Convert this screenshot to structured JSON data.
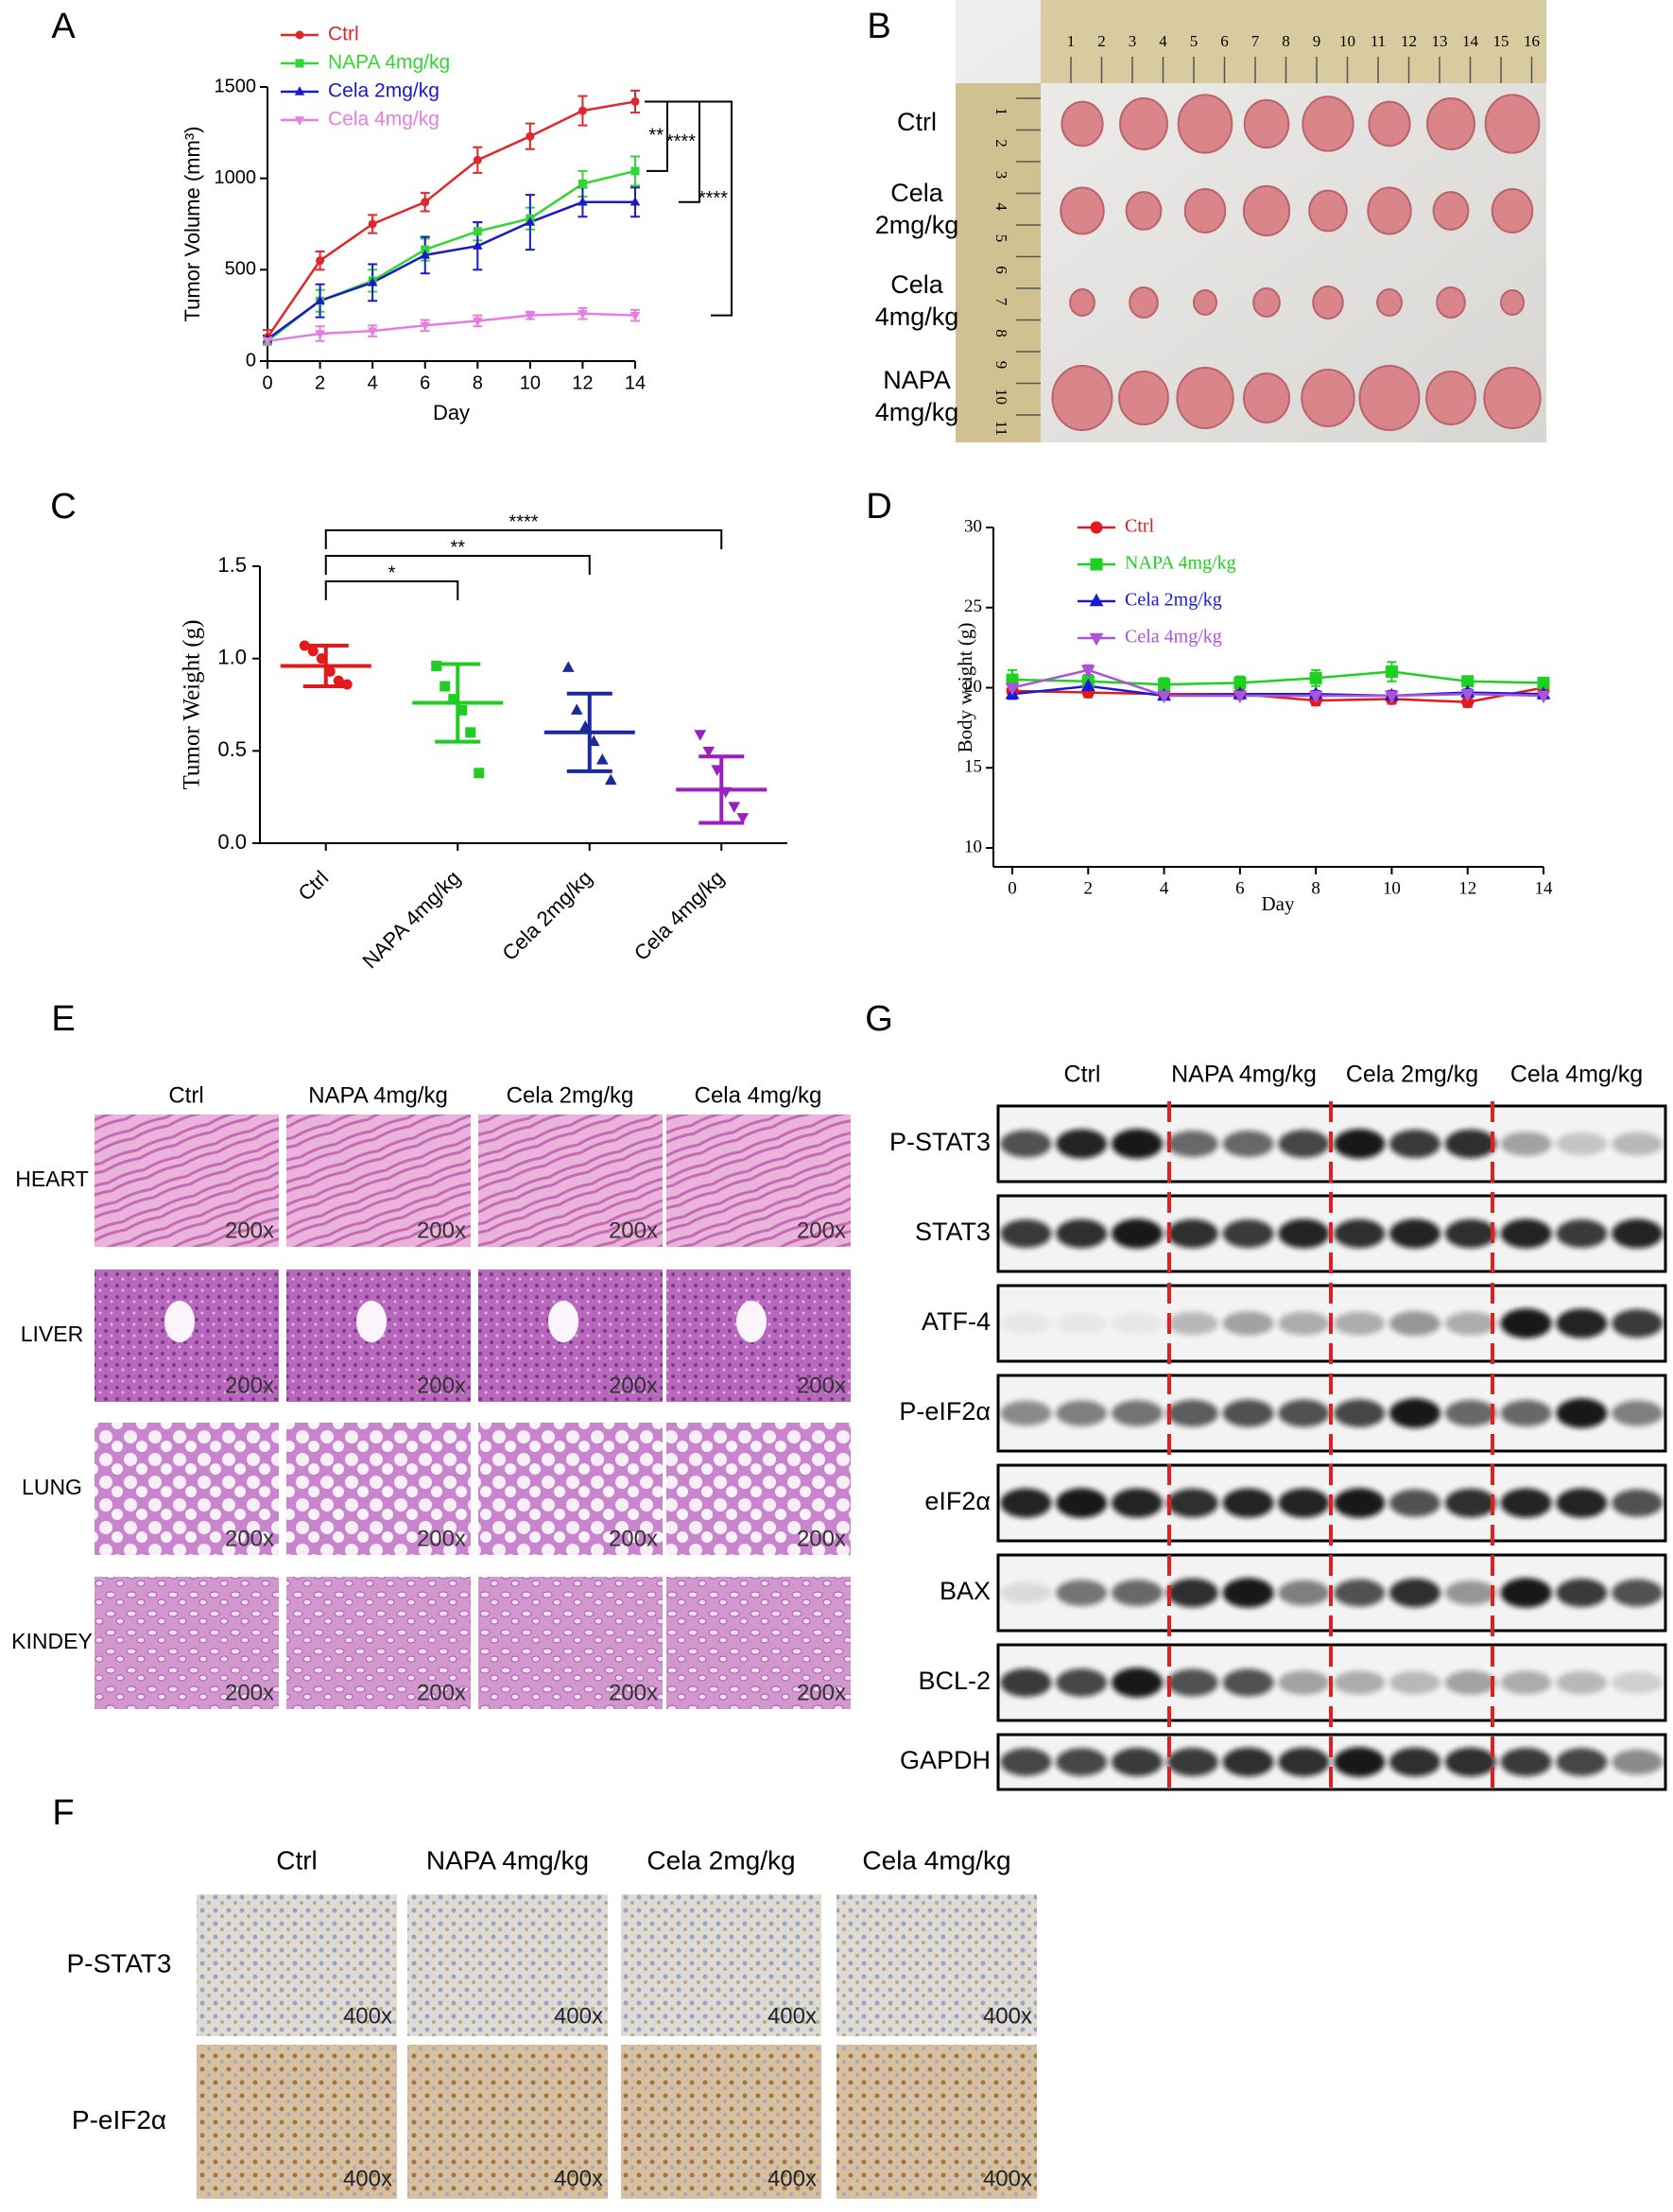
{
  "panel_labels": [
    "A",
    "B",
    "C",
    "D",
    "E",
    "F",
    "G"
  ],
  "chart_data": [
    {
      "type": "line",
      "xlabel": "Day",
      "ylabel": "Tumor Volume (mm³)",
      "x": [
        0,
        2,
        4,
        6,
        8,
        10,
        12,
        14
      ],
      "xlim": [
        0,
        14
      ],
      "xticks": [
        0,
        2,
        4,
        6,
        8,
        10,
        12,
        14
      ],
      "ylim": [
        0,
        1500
      ],
      "yticks": [
        0,
        500,
        1000,
        1500
      ],
      "legend": "upper left",
      "series": [
        {
          "name": "Ctrl",
          "color": "#e0282b",
          "marker": "circle",
          "values": [
            130,
            550,
            750,
            870,
            1100,
            1230,
            1370,
            1420
          ],
          "errors": [
            40,
            50,
            50,
            50,
            70,
            70,
            80,
            60
          ]
        },
        {
          "name": "NAPA 4mg/kg",
          "color": "#33d633",
          "marker": "square",
          "values": [
            110,
            330,
            440,
            610,
            710,
            780,
            970,
            1040
          ],
          "errors": [
            20,
            60,
            60,
            60,
            50,
            60,
            70,
            80
          ]
        },
        {
          "name": "Cela 2mg/kg",
          "color": "#1a1ac8",
          "marker": "triangle",
          "values": [
            120,
            330,
            430,
            580,
            630,
            760,
            870,
            870
          ],
          "errors": [
            20,
            90,
            100,
            100,
            130,
            150,
            80,
            80
          ]
        },
        {
          "name": "Cela 4mg/kg",
          "color": "#e57ee0",
          "marker": "tri-down",
          "values": [
            110,
            150,
            165,
            195,
            220,
            250,
            260,
            250
          ],
          "errors": [
            20,
            40,
            30,
            30,
            30,
            20,
            30,
            30
          ]
        }
      ],
      "significance": [
        "**",
        "****",
        "****"
      ]
    },
    {
      "type": "dotplot",
      "ylabel": "Tumor Weight (g)",
      "categories": [
        "Ctrl",
        "NAPA 4mg/kg",
        "Cela 2mg/kg",
        "Cela 4mg/kg"
      ],
      "colors": [
        "#e31a1c",
        "#22cc22",
        "#1a2a9c",
        "#9b1fc0"
      ],
      "markers": [
        "circle",
        "square",
        "triangle",
        "tri-down"
      ],
      "values": [
        0.96,
        0.76,
        0.6,
        0.29
      ],
      "errors": [
        0.11,
        0.21,
        0.21,
        0.18
      ],
      "points": [
        [
          1.07,
          1.04,
          1.0,
          0.93,
          0.88,
          0.86
        ],
        [
          0.96,
          0.85,
          0.78,
          0.72,
          0.6,
          0.38
        ],
        [
          0.95,
          0.72,
          0.63,
          0.55,
          0.45,
          0.34
        ],
        [
          0.59,
          0.5,
          0.4,
          0.28,
          0.2,
          0.14
        ]
      ],
      "ylim": [
        0,
        1.5
      ],
      "yticks": [
        {
          "value": 0,
          "label": "0.0"
        },
        0.5,
        {
          "value": 1,
          "label": "1.0"
        },
        1.5
      ],
      "significance": [
        "*",
        "**",
        "****"
      ]
    },
    {
      "type": "line",
      "xlabel": "Day",
      "ylabel": "Body weight (g)",
      "x": [
        0,
        2,
        4,
        6,
        8,
        10,
        12,
        14
      ],
      "xlim": [
        0,
        14
      ],
      "xticks": [
        0,
        2,
        4,
        6,
        8,
        10,
        12,
        14
      ],
      "ylim": [
        10,
        30
      ],
      "yticks": [
        10,
        15,
        20,
        25,
        30
      ],
      "legend": "upper left",
      "series": [
        {
          "name": "Ctrl",
          "color": "#e31a1c",
          "marker": "circle",
          "values": [
            19.8,
            19.7,
            19.6,
            19.6,
            19.2,
            19.3,
            19.1,
            20.0
          ],
          "errors": [
            0.3,
            0.3,
            0.2,
            0.3,
            0.3,
            0.3,
            0.3,
            0.3
          ]
        },
        {
          "name": "NAPA 4mg/kg",
          "color": "#1fd11f",
          "marker": "square",
          "values": [
            20.5,
            20.4,
            20.2,
            20.3,
            20.6,
            21.0,
            20.4,
            20.3
          ],
          "errors": [
            0.6,
            0.4,
            0.4,
            0.4,
            0.5,
            0.6,
            0.3,
            0.3
          ]
        },
        {
          "name": "Cela 2mg/kg",
          "color": "#1a1ad6",
          "marker": "triangle",
          "values": [
            19.6,
            20.1,
            19.5,
            19.6,
            19.6,
            19.5,
            19.7,
            19.6
          ],
          "errors": [
            0.3,
            0.3,
            0.2,
            0.2,
            0.2,
            0.3,
            0.2,
            0.2
          ]
        },
        {
          "name": "Cela 4mg/kg",
          "color": "#a855d6",
          "marker": "tri-down",
          "values": [
            20.0,
            21.1,
            19.5,
            19.5,
            19.5,
            19.5,
            19.6,
            19.5
          ],
          "errors": [
            0.3,
            0.3,
            0.2,
            0.2,
            0.2,
            0.2,
            0.2,
            0.2
          ]
        }
      ]
    }
  ],
  "tumor_photo": {
    "rows": [
      [
        "Ctrl"
      ],
      [
        "Cela",
        "2mg/kg"
      ],
      [
        "Cela",
        "4mg/kg"
      ],
      [
        "NAPA",
        "4mg/kg"
      ]
    ],
    "ruler_top": [
      "1",
      "2",
      "3",
      "4",
      "5",
      "6",
      "7",
      "8",
      "9",
      "10",
      "11",
      "12",
      "13",
      "14",
      "15",
      "16"
    ],
    "ruler_left": [
      "1",
      "2",
      "3",
      "4",
      "5",
      "6",
      "7",
      "8",
      "9",
      "10",
      "11"
    ]
  },
  "histology": {
    "columns": [
      "Ctrl",
      "NAPA 4mg/kg",
      "Cela 2mg/kg",
      "Cela 4mg/kg"
    ],
    "rows": [
      "HEART",
      "LIVER",
      "LUNG",
      "KINDEY"
    ],
    "magnification": "200x"
  },
  "ihc": {
    "columns": [
      "Ctrl",
      "NAPA 4mg/kg",
      "Cela 2mg/kg",
      "Cela 4mg/kg"
    ],
    "rows": [
      "P-STAT3",
      "P-eIF2α"
    ],
    "magnification": "400x"
  },
  "western_blot": {
    "groups": [
      "Ctrl",
      "NAPA 4mg/kg",
      "Cela 2mg/kg",
      "Cela 4mg/kg"
    ],
    "rows": [
      "P-STAT3",
      "STAT3",
      "ATF-4",
      "P-eIF2α",
      "eIF2α",
      "BAX",
      "BCL-2",
      "GAPDH"
    ]
  }
}
